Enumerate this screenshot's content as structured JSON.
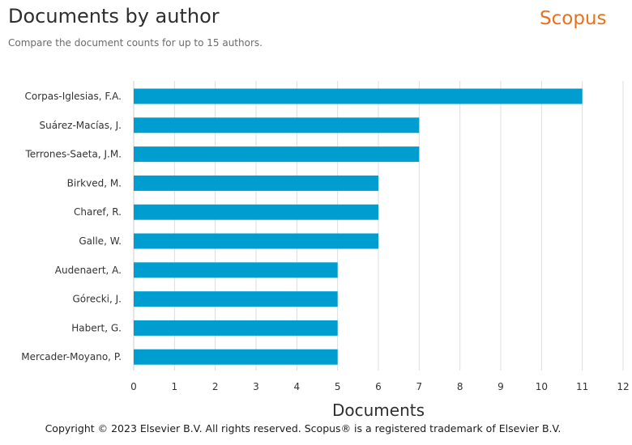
{
  "header": {
    "title": "Documents by author",
    "subtitle": "Compare the document counts for up to 15 authors.",
    "brand": "Scopus"
  },
  "footer": {
    "copyright": "Copyright © 2023 Elsevier B.V. All rights reserved. Scopus® is a registered trademark of Elsevier B.V."
  },
  "colors": {
    "bar": "#009ed0",
    "brand": "#e9711c",
    "grid": "#dddddd"
  },
  "chart_data": {
    "type": "bar",
    "orientation": "horizontal",
    "categories": [
      "Corpas-Iglesias, F.A.",
      "Suárez-Macías, J.",
      "Terrones-Saeta, J.M.",
      "Birkved, M.",
      "Charef, R.",
      "Galle, W.",
      "Audenaert, A.",
      "Górecki, J.",
      "Habert, G.",
      "Mercader-Moyano, P."
    ],
    "values": [
      11,
      7,
      7,
      6,
      6,
      6,
      5,
      5,
      5,
      5
    ],
    "xlabel": "Documents",
    "ylabel": "",
    "xlim": [
      0,
      12
    ],
    "xticks": [
      0,
      1,
      2,
      3,
      4,
      5,
      6,
      7,
      8,
      9,
      10,
      11,
      12
    ],
    "grid": true
  }
}
